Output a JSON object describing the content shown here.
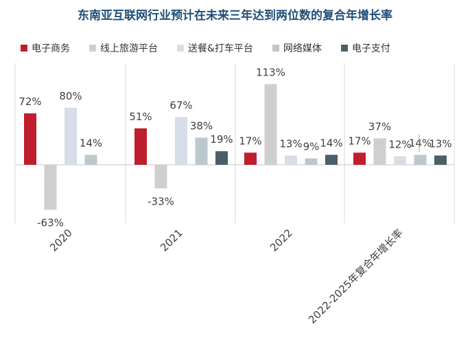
{
  "chart_data": {
    "type": "bar",
    "title": "东南亚互联网行业预计在未来三年达到两位数的复合年增长率",
    "categories": [
      "2020",
      "2021",
      "2022",
      "2022-2025年复合年增长率"
    ],
    "series": [
      {
        "name": "电子商务",
        "color": "#be1e2d",
        "values": [
          72,
          51,
          17,
          17
        ],
        "labels": [
          "72%",
          "51%",
          "17%",
          "17%"
        ]
      },
      {
        "name": "线上旅游平台",
        "color": "#d0cecf",
        "values": [
          -63,
          -33,
          113,
          37
        ],
        "labels": [
          "-63%",
          "-33%",
          "113%",
          "37%"
        ]
      },
      {
        "name": "送餐&打车平台",
        "color": "#d8dee8",
        "values": [
          80,
          67,
          13,
          12
        ],
        "labels": [
          "80%",
          "67%",
          "13%",
          "12%"
        ]
      },
      {
        "name": "网络媒体",
        "color": "#bcc8cc",
        "values": [
          14,
          38,
          9,
          14
        ],
        "labels": [
          "14%",
          "38%",
          "9%",
          "14%"
        ]
      },
      {
        "name": "电子支付",
        "color": "#4a5f68",
        "values": [
          null,
          19,
          14,
          13
        ],
        "labels": [
          "",
          "19%",
          "14%",
          "13%"
        ]
      }
    ],
    "ylim": [
      -85,
      150
    ],
    "grid": false,
    "legend_position": "top"
  }
}
